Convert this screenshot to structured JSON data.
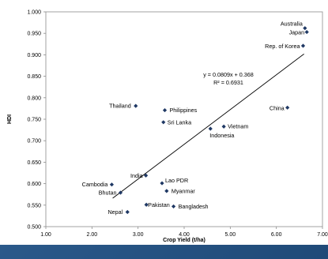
{
  "chart_data": {
    "type": "scatter",
    "xlabel": "Crop Yield (t/ha)",
    "ylabel": "HDI",
    "xlim": [
      1.0,
      7.0
    ],
    "ylim": [
      0.5,
      1.0
    ],
    "x_ticks": [
      "1.00",
      "2.00",
      "3.00",
      "4.00",
      "5.00",
      "6.00",
      "7.00"
    ],
    "y_ticks": [
      "0.500",
      "0.550",
      "0.600",
      "0.650",
      "0.700",
      "0.750",
      "0.800",
      "0.850",
      "0.900",
      "0.950",
      "1.000"
    ],
    "grid": false,
    "marker_color": "#1f3864",
    "trendline": {
      "equation": "y = 0.0809x + 0.368",
      "r_squared": "R² = 0.6931",
      "slope": 0.0809,
      "intercept": 0.368,
      "x_range": [
        2.45,
        6.6
      ]
    },
    "points": [
      {
        "label": "Australia",
        "x": 6.62,
        "y": 0.962
      },
      {
        "label": "Japan",
        "x": 6.66,
        "y": 0.953
      },
      {
        "label": "Rep. of Korea",
        "x": 6.58,
        "y": 0.921
      },
      {
        "label": "China",
        "x": 6.24,
        "y": 0.777
      },
      {
        "label": "Thailand",
        "x": 2.95,
        "y": 0.781
      },
      {
        "label": "Philippines",
        "x": 3.58,
        "y": 0.771
      },
      {
        "label": "Sri Lanka",
        "x": 3.55,
        "y": 0.743
      },
      {
        "label": "Vietnam",
        "x": 4.86,
        "y": 0.733
      },
      {
        "label": "Indonesia",
        "x": 4.57,
        "y": 0.728
      },
      {
        "label": "India",
        "x": 3.17,
        "y": 0.619
      },
      {
        "label": "Lao PDR",
        "x": 3.52,
        "y": 0.601
      },
      {
        "label": "Cambodia",
        "x": 2.43,
        "y": 0.598
      },
      {
        "label": "Myanmar",
        "x": 3.62,
        "y": 0.583
      },
      {
        "label": "Bhutan",
        "x": 2.62,
        "y": 0.579
      },
      {
        "label": "Pakistan",
        "x": 3.18,
        "y": 0.551
      },
      {
        "label": "Bangladesh",
        "x": 3.77,
        "y": 0.547
      },
      {
        "label": "Nepal",
        "x": 2.77,
        "y": 0.534
      }
    ]
  }
}
